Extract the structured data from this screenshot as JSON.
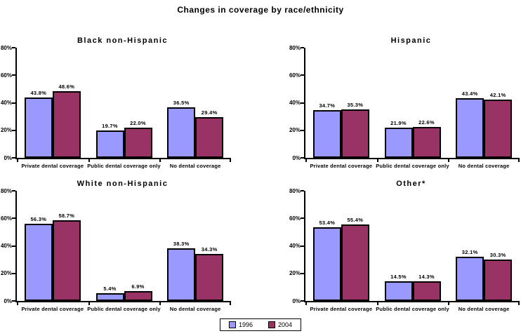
{
  "page": {
    "title": "Changes in coverage by race/ethnicity"
  },
  "legend": {
    "items": [
      {
        "label": "1996",
        "color": "#9999ff"
      },
      {
        "label": "2004",
        "color": "#993366"
      }
    ]
  },
  "axes": {
    "yticks": [
      "0%",
      "20%",
      "40%",
      "60%",
      "80%"
    ],
    "ylim": [
      0,
      80
    ]
  },
  "chart_data": [
    {
      "type": "bar",
      "title": "Black non-Hispanic",
      "categories": [
        "Private dental coverage",
        "Public dental coverage only",
        "No dental coverage"
      ],
      "series": [
        {
          "name": "1996",
          "color": "#9999ff",
          "values": [
            43.8,
            19.7,
            36.5
          ]
        },
        {
          "name": "2004",
          "color": "#993366",
          "values": [
            48.6,
            22.0,
            29.4
          ]
        }
      ],
      "bar_labels": [
        "43.8%",
        "19.7%",
        "36.5%",
        "48.6%",
        "22.0%",
        "29.4%"
      ],
      "ylim": [
        0,
        80
      ],
      "grid": false,
      "legend_position": "shared-bottom"
    },
    {
      "type": "bar",
      "title": "Hispanic",
      "categories": [
        "Private dental coverage",
        "Public dental coverage only",
        "No dental coverage"
      ],
      "series": [
        {
          "name": "1996",
          "color": "#9999ff",
          "values": [
            34.7,
            21.9,
            43.4
          ]
        },
        {
          "name": "2004",
          "color": "#993366",
          "values": [
            35.3,
            22.6,
            42.1
          ]
        }
      ],
      "bar_labels": [
        "34.7%",
        "21.9%",
        "43.4%",
        "35.3%",
        "22.6%",
        "42.1%"
      ],
      "ylim": [
        0,
        80
      ],
      "grid": false,
      "legend_position": "shared-bottom"
    },
    {
      "type": "bar",
      "title": "White non-Hispanic",
      "categories": [
        "Private dental coverage",
        "Public dental coverage only",
        "No dental coverage"
      ],
      "series": [
        {
          "name": "1996",
          "color": "#9999ff",
          "values": [
            56.3,
            5.4,
            38.3
          ]
        },
        {
          "name": "2004",
          "color": "#993366",
          "values": [
            58.7,
            6.9,
            34.3
          ]
        }
      ],
      "bar_labels": [
        "56.3%",
        "5.4%",
        "38.3%",
        "58.7%",
        "6.9%",
        "34.3%"
      ],
      "ylim": [
        0,
        80
      ],
      "grid": false,
      "legend_position": "shared-bottom"
    },
    {
      "type": "bar",
      "title": "Other*",
      "categories": [
        "Private dental coverage",
        "Public dental coverage only",
        "No dental coverage"
      ],
      "series": [
        {
          "name": "1996",
          "color": "#9999ff",
          "values": [
            53.4,
            14.5,
            32.1
          ]
        },
        {
          "name": "2004",
          "color": "#993366",
          "values": [
            55.4,
            14.3,
            30.3
          ]
        }
      ],
      "bar_labels": [
        "53.4%",
        "14.5%",
        "32.1%",
        "55.4%",
        "14.3%",
        "30.3%"
      ],
      "ylim": [
        0,
        80
      ],
      "grid": false,
      "legend_position": "shared-bottom"
    }
  ]
}
